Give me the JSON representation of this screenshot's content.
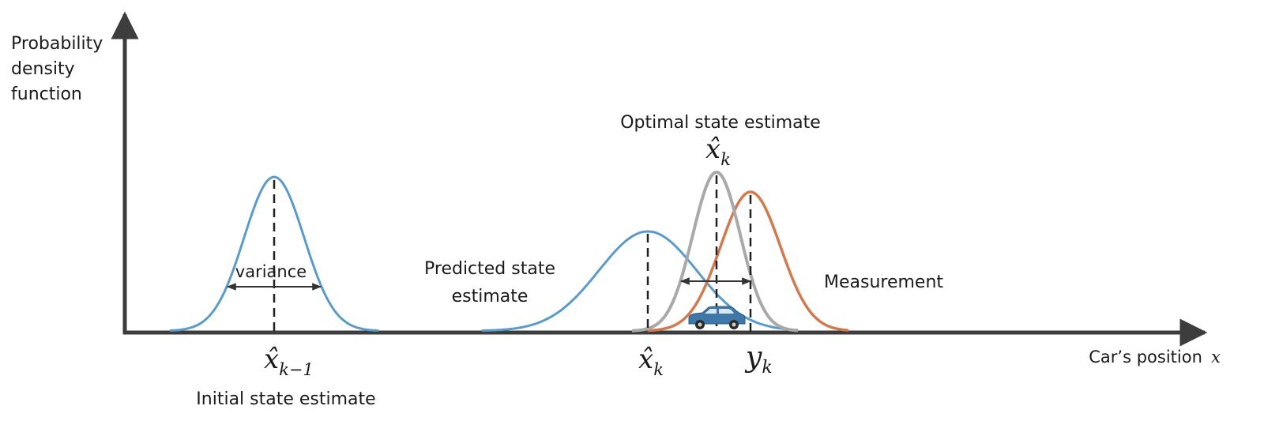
{
  "axes": {
    "y_label_lines": [
      "Probability",
      "density",
      "function"
    ],
    "x_label_text": "Car’s position",
    "x_label_symbol": "x"
  },
  "labels": {
    "variance": "variance",
    "predicted": [
      "Predicted state",
      "estimate"
    ],
    "optimal": "Optimal state estimate",
    "measurement": "Measurement",
    "initial": "Initial state estimate"
  },
  "math": {
    "initial_symbol": "x̂",
    "initial_sub": "k−1",
    "predicted_symbol": "x̂",
    "predicted_sub": "k",
    "optimal_symbol": "x̂",
    "optimal_sub": "k",
    "measurement_symbol": "y",
    "measurement_sub": "k"
  },
  "colors": {
    "initial": "#5b9bc9",
    "predicted": "#5b9bc9",
    "optimal": "#a9a9a9",
    "measurement": "#d07a50",
    "axis": "#3d3d3d",
    "car": "#3f77a8"
  },
  "icons": {
    "car": "car-icon"
  }
}
